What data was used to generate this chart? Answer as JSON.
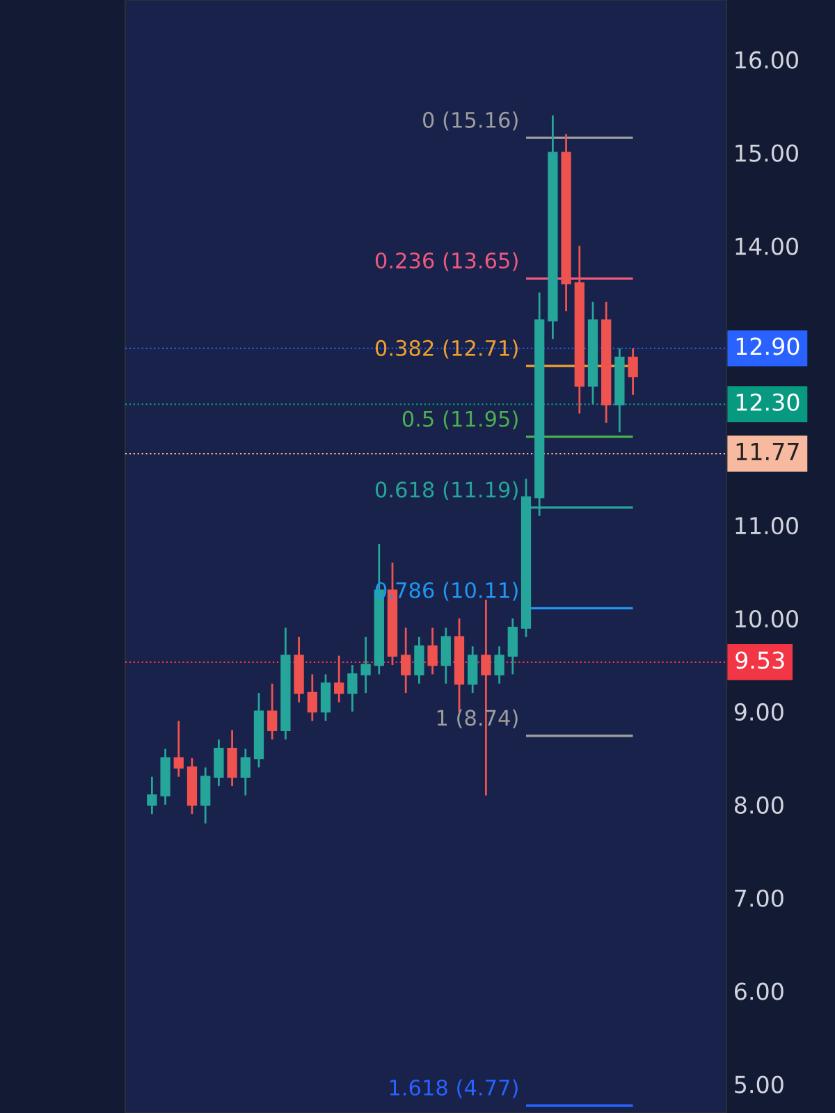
{
  "chart_data": {
    "type": "candlestick",
    "categories": [
      null,
      null,
      null,
      null,
      null,
      null,
      null,
      null,
      null,
      null,
      null,
      null,
      null,
      null,
      null,
      null,
      null,
      null,
      null,
      null,
      null,
      null,
      null,
      null,
      null,
      null,
      null,
      null,
      null,
      null,
      null,
      null,
      null,
      null,
      null,
      null,
      null
    ],
    "ohlc": [
      [
        8.0,
        8.3,
        7.9,
        8.1
      ],
      [
        8.1,
        8.6,
        8.0,
        8.5
      ],
      [
        8.5,
        8.9,
        8.3,
        8.4
      ],
      [
        8.4,
        8.5,
        7.9,
        8.0
      ],
      [
        8.0,
        8.4,
        7.8,
        8.3
      ],
      [
        8.3,
        8.7,
        8.2,
        8.6
      ],
      [
        8.6,
        8.8,
        8.2,
        8.3
      ],
      [
        8.3,
        8.6,
        8.1,
        8.5
      ],
      [
        8.5,
        9.2,
        8.4,
        9.0
      ],
      [
        9.0,
        9.3,
        8.7,
        8.8
      ],
      [
        8.8,
        9.9,
        8.7,
        9.6
      ],
      [
        9.6,
        9.8,
        9.1,
        9.2
      ],
      [
        9.2,
        9.4,
        8.9,
        9.0
      ],
      [
        9.0,
        9.4,
        8.9,
        9.3
      ],
      [
        9.3,
        9.6,
        9.1,
        9.2
      ],
      [
        9.2,
        9.5,
        9.0,
        9.4
      ],
      [
        9.4,
        9.8,
        9.2,
        9.5
      ],
      [
        9.5,
        10.8,
        9.4,
        10.3
      ],
      [
        10.3,
        10.6,
        9.5,
        9.6
      ],
      [
        9.6,
        9.9,
        9.2,
        9.4
      ],
      [
        9.4,
        9.8,
        9.3,
        9.7
      ],
      [
        9.7,
        9.9,
        9.4,
        9.5
      ],
      [
        9.5,
        9.9,
        9.3,
        9.8
      ],
      [
        9.8,
        10.0,
        9.0,
        9.3
      ],
      [
        9.3,
        9.7,
        9.2,
        9.6
      ],
      [
        9.6,
        10.2,
        8.1,
        9.4
      ],
      [
        9.4,
        9.7,
        9.3,
        9.6
      ],
      [
        9.6,
        10.0,
        9.4,
        9.9
      ],
      [
        9.9,
        11.5,
        9.8,
        11.3
      ],
      [
        11.3,
        13.5,
        11.1,
        13.2
      ],
      [
        13.2,
        15.4,
        13.0,
        15.0
      ],
      [
        15.0,
        15.2,
        13.3,
        13.6
      ],
      [
        13.6,
        14.0,
        12.2,
        12.5
      ],
      [
        12.5,
        13.4,
        12.3,
        13.2
      ],
      [
        13.2,
        13.4,
        12.1,
        12.3
      ],
      [
        12.3,
        12.9,
        12.0,
        12.8
      ],
      [
        12.8,
        12.9,
        12.4,
        12.6
      ]
    ],
    "colors": [
      "#26a69a",
      "#26a69a",
      "#ef5350",
      "#ef5350",
      "#26a69a",
      "#26a69a",
      "#ef5350",
      "#26a69a",
      "#26a69a",
      "#ef5350",
      "#26a69a",
      "#ef5350",
      "#ef5350",
      "#26a69a",
      "#ef5350",
      "#26a69a",
      "#26a69a",
      "#26a69a",
      "#ef5350",
      "#ef5350",
      "#26a69a",
      "#ef5350",
      "#26a69a",
      "#ef5350",
      "#26a69a",
      "#ef5350",
      "#26a69a",
      "#26a69a",
      "#26a69a",
      "#26a69a",
      "#26a69a",
      "#ef5350",
      "#ef5350",
      "#26a69a",
      "#ef5350",
      "#26a69a",
      "#ef5350"
    ],
    "ylim": [
      4.69,
      16.64
    ],
    "yticks": [
      {
        "value": 5,
        "label": "5.00"
      },
      {
        "value": 6,
        "label": "6.00"
      },
      {
        "value": 7,
        "label": "7.00"
      },
      {
        "value": 8,
        "label": "8.00"
      },
      {
        "value": 9,
        "label": "9.00"
      },
      {
        "value": 10,
        "label": "10.00"
      },
      {
        "value": 11,
        "label": "11.00"
      },
      {
        "value": 14,
        "label": "14.00"
      },
      {
        "value": 15,
        "label": "15.00"
      },
      {
        "value": 16,
        "label": "16.00"
      }
    ],
    "ref_lines": [
      {
        "axis": "y",
        "value": 15.16,
        "label": "0 (15.16)",
        "color": "#9e9e9e",
        "line_style": "solid"
      },
      {
        "axis": "y",
        "value": 13.65,
        "label": "0.236 (13.65)",
        "color": "#f05a7e",
        "line_style": "solid"
      },
      {
        "axis": "y",
        "value": 12.71,
        "label": "0.382 (12.71)",
        "color": "#f0a030",
        "line_style": "solid"
      },
      {
        "axis": "y",
        "value": 11.95,
        "label": "0.5 (11.95)",
        "color": "#4caf50",
        "line_style": "solid"
      },
      {
        "axis": "y",
        "value": 11.19,
        "label": "0.618 (11.19)",
        "color": "#26a69a",
        "line_style": "solid"
      },
      {
        "axis": "y",
        "value": 10.11,
        "label": "0.786 (10.11)",
        "color": "#2196f3",
        "line_style": "solid"
      },
      {
        "axis": "y",
        "value": 8.74,
        "label": "1 (8.74)",
        "color": "#9e9e9e",
        "line_style": "solid"
      },
      {
        "axis": "y",
        "value": 4.77,
        "label": "1.618 (4.77)",
        "color": "#2962ff",
        "line_style": "solid"
      },
      {
        "axis": "y",
        "value": 12.9,
        "label": "12.90",
        "color": "#2962ff",
        "line_style": "dotted"
      },
      {
        "axis": "y",
        "value": 12.3,
        "label": "12.30",
        "color": "#089981",
        "line_style": "dotted"
      },
      {
        "axis": "y",
        "value": 11.77,
        "label": "11.77",
        "color": "#f7b9a0",
        "line_style": "dotted"
      },
      {
        "axis": "y",
        "value": 9.53,
        "label": "9.53",
        "color": "#f23645",
        "line_style": "dotted"
      }
    ],
    "grid": false
  }
}
